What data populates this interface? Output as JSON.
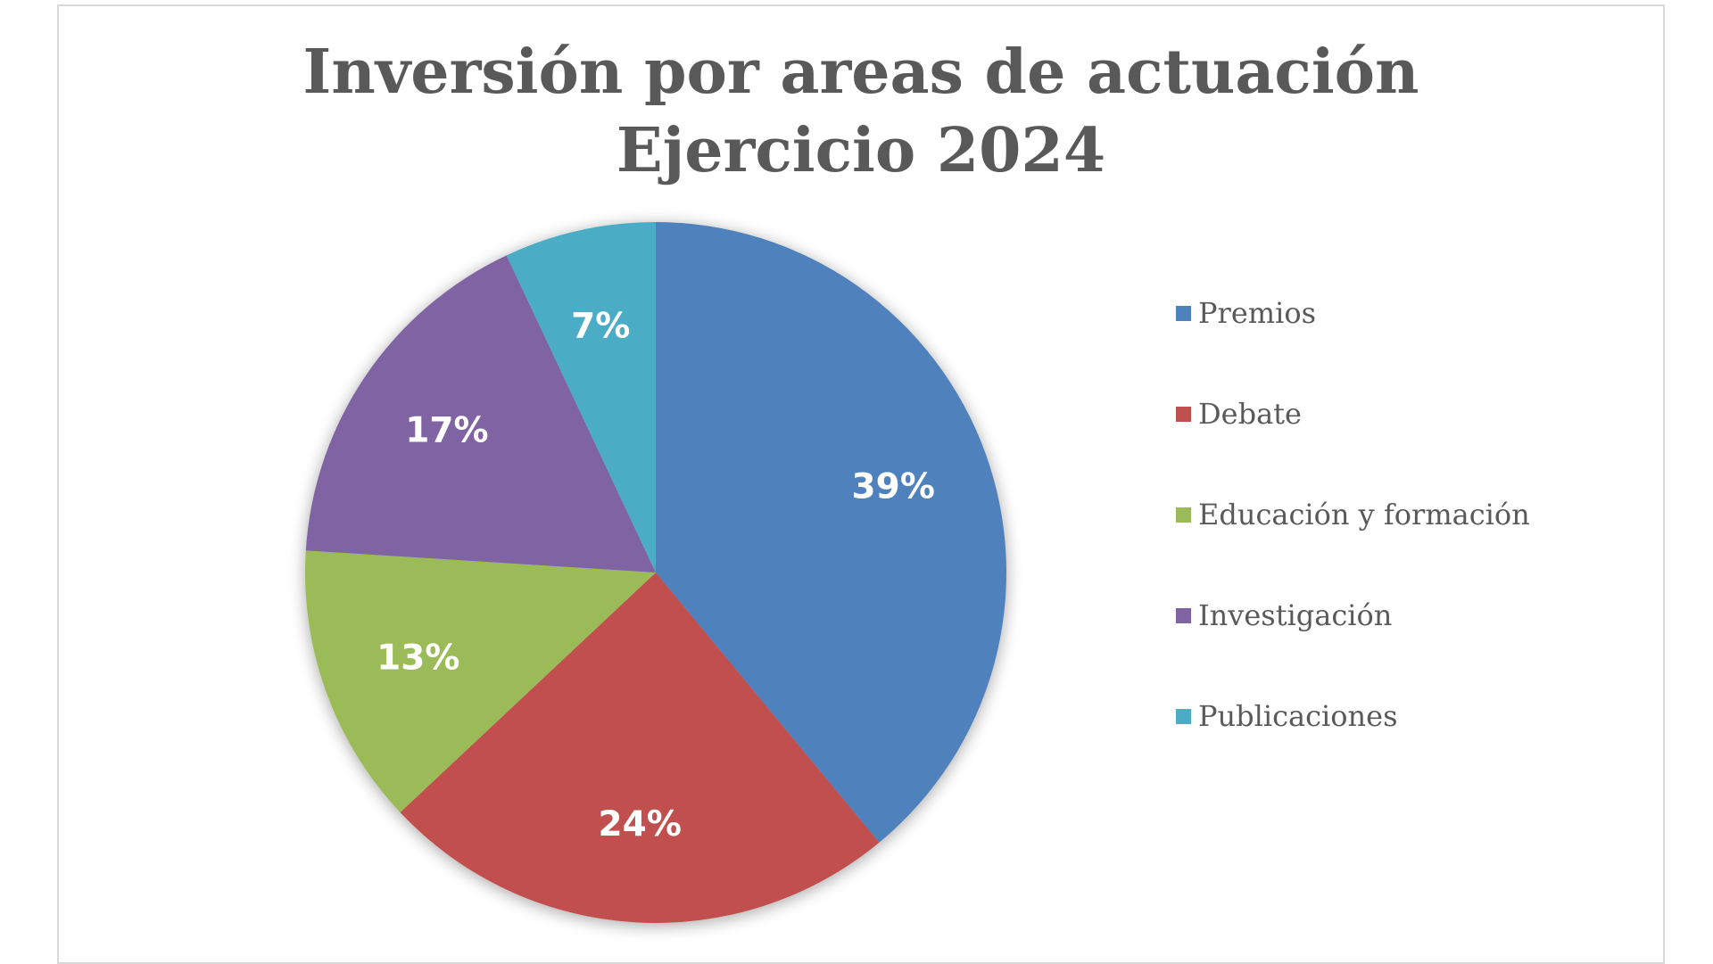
{
  "chart_data": {
    "type": "pie",
    "title": "Inversión por areas de actuación",
    "subtitle": "Ejercicio 2024",
    "categories": [
      "Premios",
      "Debate",
      "Educación y formación",
      "Investigación",
      "Publicaciones"
    ],
    "values": [
      39,
      24,
      13,
      17,
      7
    ],
    "data_labels": [
      "39%",
      "24%",
      "13%",
      "17%",
      "7%"
    ],
    "colors": [
      "#4F81BD",
      "#C0504D",
      "#9BBB59",
      "#8064A2",
      "#4BACC6"
    ],
    "start_angle": "12 o'clock",
    "direction": "clockwise",
    "legend_position": "right"
  }
}
